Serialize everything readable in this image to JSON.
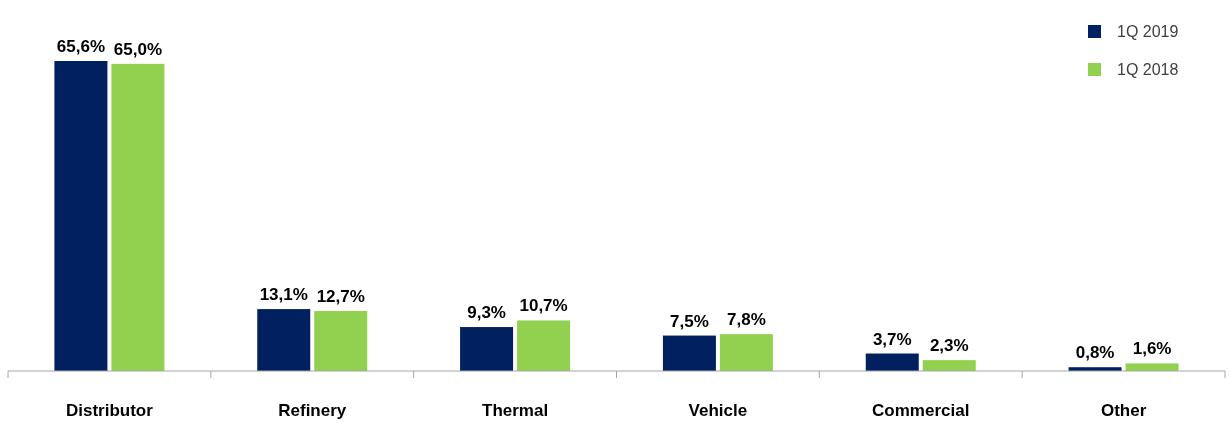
{
  "chart_data": {
    "type": "bar",
    "categories": [
      "Distributor",
      "Refinery",
      "Thermal",
      "Vehicle",
      "Commercial",
      "Other"
    ],
    "series": [
      {
        "name": "1Q 2019",
        "color": "#002060",
        "values": [
          65.6,
          13.1,
          9.3,
          7.5,
          3.7,
          0.8
        ],
        "value_labels": [
          "65,6%",
          "13,1%",
          "9,3%",
          "7,5%",
          "3,7%",
          "0,8%"
        ]
      },
      {
        "name": "1Q 2018",
        "color": "#92d050",
        "values": [
          65.0,
          12.7,
          10.7,
          7.8,
          2.3,
          1.6
        ],
        "value_labels": [
          "65,0%",
          "12,7%",
          "10,7%",
          "7,8%",
          "2,3%",
          "1,6%"
        ]
      }
    ],
    "legend": "top right"
  }
}
